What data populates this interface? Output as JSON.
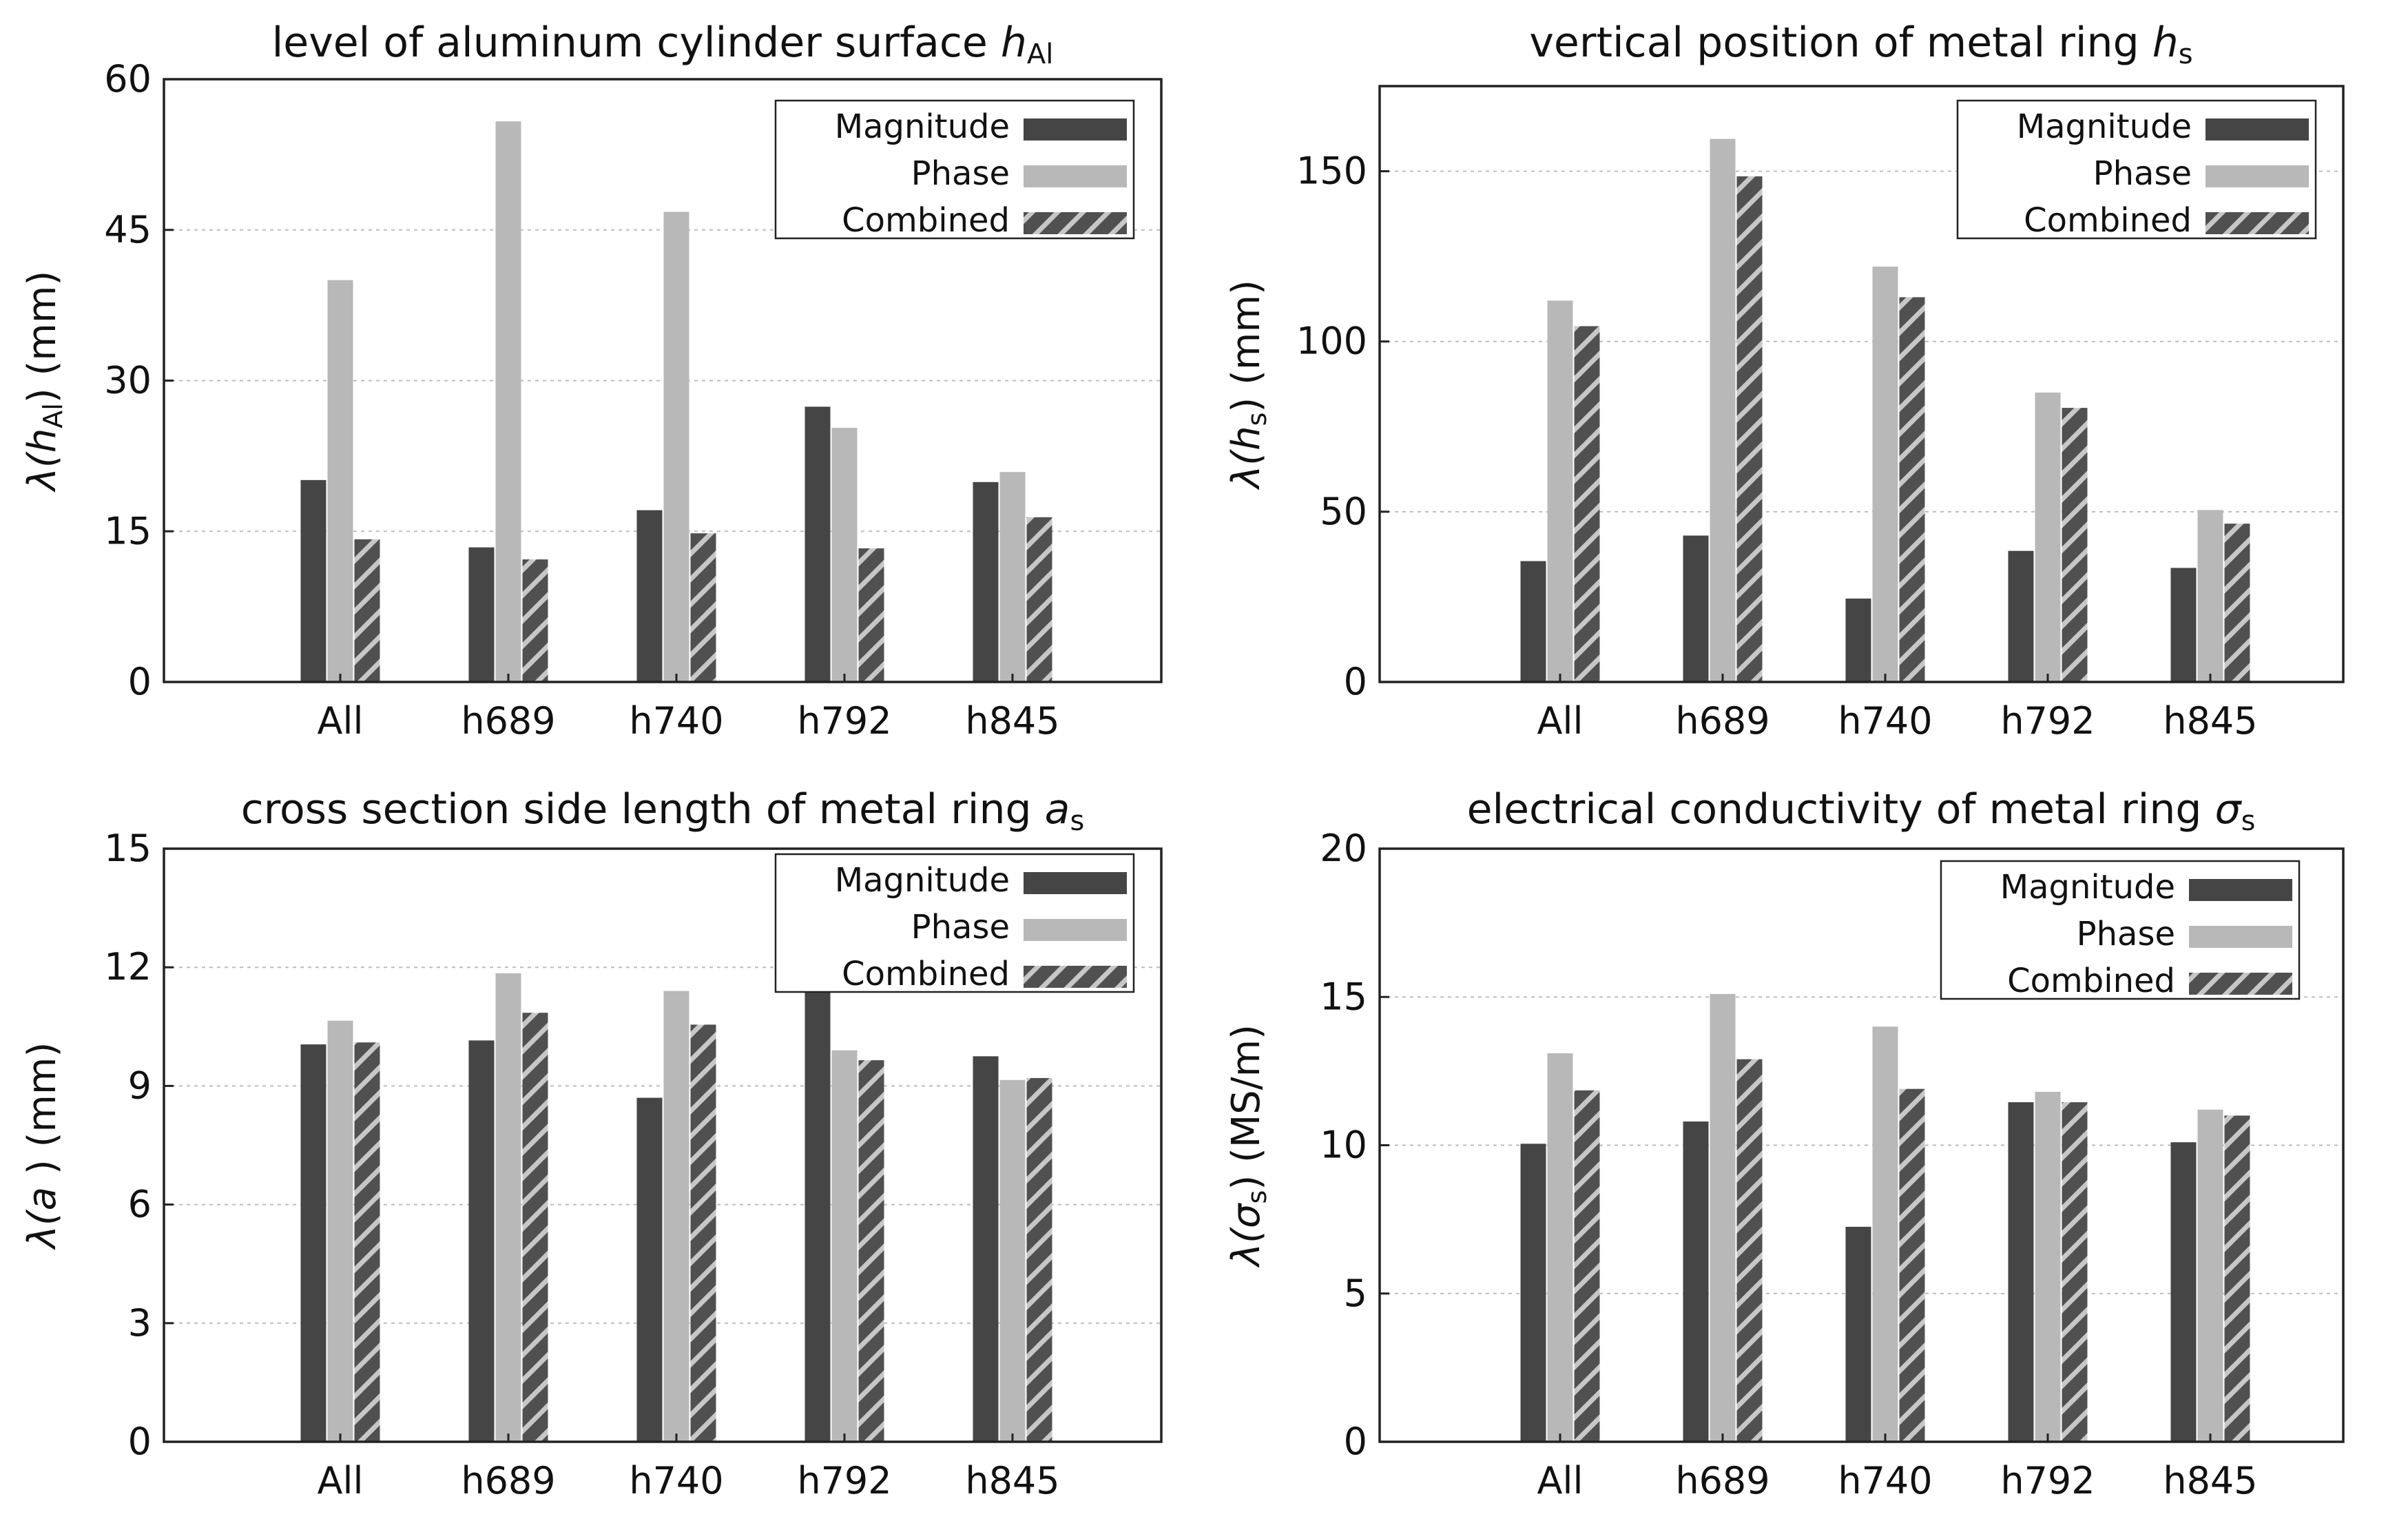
{
  "colors": {
    "magnitude": "#454545",
    "phase": "#b8b8b8",
    "combined": "#505050",
    "hatch": "#c7c7c7",
    "axis": "#222222",
    "grid": "#bdbdbd"
  },
  "chart_data": [
    {
      "type": "bar",
      "title": "level of aluminum cylinder surface",
      "title_symbol": "h",
      "title_subscript": "Al",
      "ylabel": {
        "prefix": "λ(",
        "symbol": "h",
        "subscript": "Al",
        "suffix": ")  (mm)"
      },
      "xlabel": "",
      "categories": [
        "All",
        "h689",
        "h740",
        "h792",
        "h845"
      ],
      "ylim": [
        0,
        60
      ],
      "yticks": [
        0,
        15,
        30,
        45,
        60
      ],
      "grid": true,
      "legend_position": "top-right",
      "series": [
        {
          "name": "Magnitude",
          "values": [
            20.1,
            13.4,
            17.1,
            27.4,
            19.9
          ]
        },
        {
          "name": "Phase",
          "values": [
            40.0,
            55.8,
            46.8,
            25.3,
            20.9
          ]
        },
        {
          "name": "Combined",
          "values": [
            14.2,
            12.2,
            14.8,
            13.3,
            16.4
          ]
        }
      ]
    },
    {
      "type": "bar",
      "title": "vertical position of metal ring",
      "title_symbol": "h",
      "title_subscript": "s",
      "ylabel": {
        "prefix": "λ(",
        "symbol": "h",
        "subscript": "s",
        "suffix": ")  (mm)"
      },
      "xlabel": "",
      "categories": [
        "All",
        "h689",
        "h740",
        "h792",
        "h845"
      ],
      "ylim": [
        0,
        175
      ],
      "yticks": [
        0,
        50,
        100,
        150
      ],
      "grid": true,
      "legend_position": "top-right",
      "series": [
        {
          "name": "Magnitude",
          "values": [
            35.5,
            43.0,
            24.5,
            38.5,
            33.5
          ]
        },
        {
          "name": "Phase",
          "values": [
            112.0,
            159.5,
            122.0,
            85.0,
            50.5
          ]
        },
        {
          "name": "Combined",
          "values": [
            104.5,
            148.5,
            113.0,
            80.5,
            46.5
          ]
        }
      ]
    },
    {
      "type": "bar",
      "title": "cross section side length of metal ring",
      "title_symbol": "a",
      "title_subscript": "s",
      "ylabel": {
        "prefix": "λ(",
        "symbol": "a",
        "subscript": "",
        "suffix": " )  (mm)"
      },
      "xlabel": "",
      "categories": [
        "All",
        "h689",
        "h740",
        "h792",
        "h845"
      ],
      "ylim": [
        0,
        15
      ],
      "yticks": [
        0,
        3,
        6,
        9,
        12,
        15
      ],
      "grid": true,
      "legend_position": "top-right",
      "series": [
        {
          "name": "Magnitude",
          "values": [
            10.05,
            10.15,
            8.7,
            11.45,
            9.75
          ]
        },
        {
          "name": "Phase",
          "values": [
            10.65,
            11.85,
            11.4,
            9.9,
            9.15
          ]
        },
        {
          "name": "Combined",
          "values": [
            10.1,
            10.85,
            10.55,
            9.65,
            9.2
          ]
        }
      ]
    },
    {
      "type": "bar",
      "title": "electrical conductivity of metal ring",
      "title_symbol": "σ",
      "title_subscript": "s",
      "ylabel": {
        "prefix": "λ(",
        "symbol": "σ",
        "subscript": "s",
        "suffix": ")  (MS/m)"
      },
      "xlabel": "",
      "categories": [
        "All",
        "h689",
        "h740",
        "h792",
        "h845"
      ],
      "ylim": [
        0,
        20
      ],
      "yticks": [
        0,
        5,
        10,
        15,
        20
      ],
      "grid": true,
      "legend_position": "top-right",
      "series": [
        {
          "name": "Magnitude",
          "values": [
            10.05,
            10.8,
            7.25,
            11.45,
            10.1
          ]
        },
        {
          "name": "Phase",
          "values": [
            13.1,
            15.1,
            14.0,
            11.8,
            11.2
          ]
        },
        {
          "name": "Combined",
          "values": [
            11.85,
            12.9,
            11.9,
            11.45,
            11.0
          ]
        }
      ]
    }
  ]
}
